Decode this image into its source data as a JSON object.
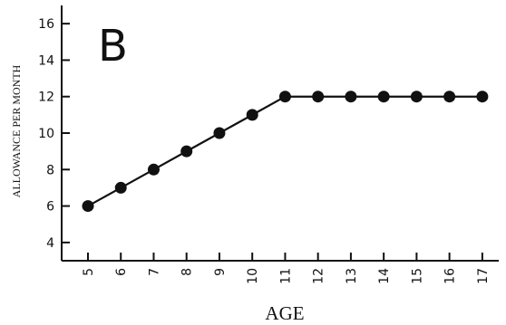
{
  "chart_data": {
    "type": "line",
    "panel_label": "B",
    "xlabel": "AGE",
    "ylabel": "ALLOWANCE PER MONTH",
    "x": [
      5,
      6,
      7,
      8,
      9,
      10,
      11,
      12,
      13,
      14,
      15,
      16,
      17
    ],
    "series": [
      {
        "values": [
          6,
          7,
          8,
          9,
          10,
          11,
          12,
          12,
          12,
          12,
          12,
          12,
          12
        ]
      }
    ],
    "x_ticks": [
      "5",
      "6",
      "7",
      "8",
      "9",
      "10",
      "11",
      "12",
      "13",
      "14",
      "15",
      "16",
      "17"
    ],
    "y_ticks": [
      "4",
      "6",
      "8",
      "10",
      "12",
      "14",
      "16"
    ],
    "ylim": [
      3,
      17
    ],
    "xlim": [
      4.2,
      17.5
    ],
    "grid": false,
    "colors": {
      "line": "#111111",
      "marker": "#111111",
      "axis": "#111111"
    }
  }
}
